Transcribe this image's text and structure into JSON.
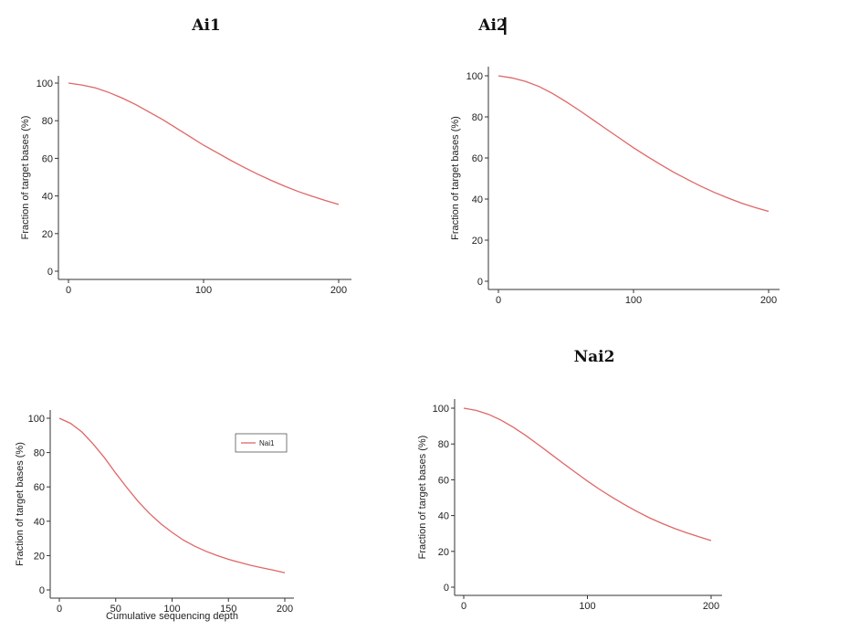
{
  "chart_data": [
    {
      "type": "line",
      "title": "Ai1",
      "xlabel": "",
      "ylabel": "Fraction of target bases (%)",
      "xlim": [
        0,
        200
      ],
      "ylim": [
        0,
        100
      ],
      "x_ticks": [
        "0",
        "100",
        "200"
      ],
      "y_ticks": [
        "0",
        "20",
        "40",
        "60",
        "80",
        "100"
      ],
      "grid": false,
      "legend": null,
      "series": [
        {
          "x": [
            0,
            10,
            20,
            30,
            40,
            50,
            60,
            70,
            80,
            90,
            100,
            110,
            120,
            130,
            140,
            150,
            160,
            170,
            180,
            190,
            200
          ],
          "y": [
            100,
            99,
            97.5,
            95,
            92,
            88.5,
            84.5,
            80.5,
            76,
            71.5,
            67,
            63,
            59,
            55.2,
            51.6,
            48.3,
            45.2,
            42.4,
            39.9,
            37.6,
            35.5
          ]
        }
      ]
    },
    {
      "type": "line",
      "title": "Ai2",
      "xlabel": "",
      "ylabel": "Fraction of target bases (%)",
      "xlim": [
        0,
        200
      ],
      "ylim": [
        0,
        100
      ],
      "x_ticks": [
        "0",
        "100",
        "200"
      ],
      "y_ticks": [
        "0",
        "20",
        "40",
        "60",
        "80",
        "100"
      ],
      "grid": false,
      "legend": null,
      "series": [
        {
          "x": [
            0,
            10,
            20,
            30,
            40,
            50,
            60,
            70,
            80,
            90,
            100,
            110,
            120,
            130,
            140,
            150,
            160,
            170,
            180,
            190,
            200
          ],
          "y": [
            100,
            99,
            97.3,
            94.8,
            91.4,
            87.4,
            83.1,
            78.6,
            74,
            69.5,
            65,
            60.8,
            56.8,
            53,
            49.5,
            46.2,
            43.2,
            40.5,
            38,
            35.9,
            34
          ]
        }
      ]
    },
    {
      "type": "line",
      "title": "",
      "xlabel": "Cumulative sequencing depth",
      "ylabel": "Fraction of target bases (%)",
      "xlim": [
        0,
        200
      ],
      "ylim": [
        0,
        100
      ],
      "x_ticks": [
        "0",
        "50",
        "100",
        "150",
        "200"
      ],
      "y_ticks": [
        "0",
        "20",
        "40",
        "60",
        "80",
        "100"
      ],
      "grid": false,
      "legend": "top-right",
      "series": [
        {
          "name": "Nai1",
          "x": [
            0,
            10,
            20,
            30,
            40,
            50,
            60,
            70,
            80,
            90,
            100,
            110,
            120,
            130,
            140,
            150,
            160,
            170,
            180,
            190,
            200
          ],
          "y": [
            100,
            97,
            92,
            85,
            77,
            68,
            59.5,
            51.5,
            44.5,
            38.5,
            33.5,
            29,
            25.5,
            22.5,
            20,
            17.8,
            16,
            14.3,
            12.8,
            11.5,
            10
          ]
        }
      ]
    },
    {
      "type": "line",
      "title": "Nai2",
      "xlabel": "",
      "ylabel": "Fraction of target bases (%)",
      "xlim": [
        0,
        200
      ],
      "ylim": [
        0,
        100
      ],
      "x_ticks": [
        "0",
        "100",
        "200"
      ],
      "y_ticks": [
        "0",
        "20",
        "40",
        "60",
        "80",
        "100"
      ],
      "grid": false,
      "legend": null,
      "series": [
        {
          "x": [
            0,
            10,
            20,
            30,
            40,
            50,
            60,
            70,
            80,
            90,
            100,
            110,
            120,
            130,
            140,
            150,
            160,
            170,
            180,
            190,
            200
          ],
          "y": [
            100,
            98.8,
            96.6,
            93.4,
            89.4,
            84.8,
            79.8,
            74.6,
            69.4,
            64.3,
            59.3,
            54.6,
            50.2,
            46.1,
            42.3,
            38.8,
            35.7,
            32.9,
            30.4,
            28.2,
            26
          ]
        }
      ]
    }
  ]
}
